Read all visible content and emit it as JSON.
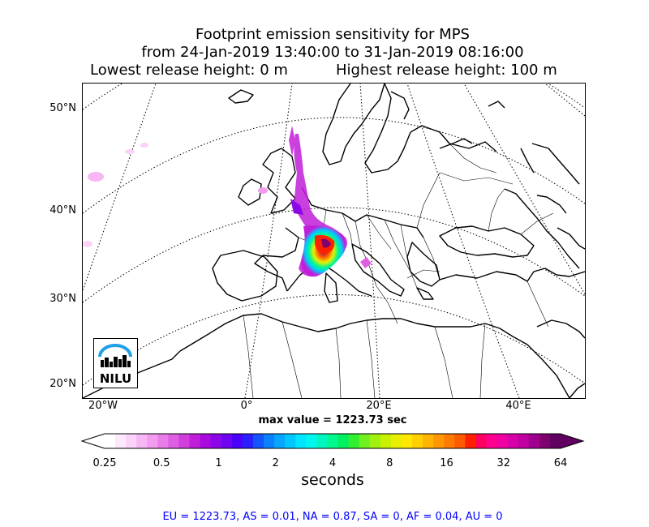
{
  "title": {
    "line1": "Footprint emission sensitivity for MPS",
    "line2": "from 24-Jan-2019 13:40:00 to 31-Jan-2019 08:16:00",
    "line3_left": "Lowest release height: 0 m",
    "line3_right": "Highest release height: 100 m"
  },
  "map": {
    "lat_labels": [
      "50°N",
      "40°N",
      "30°N",
      "20°N"
    ],
    "lon_labels": [
      "20°W",
      "0°",
      "20°E",
      "40°E"
    ],
    "logo_text": "NILU"
  },
  "max_value_text": "max value = 1223.73 sec",
  "colorbar": {
    "ticks": [
      "0.25",
      "0.5",
      "1",
      "2",
      "4",
      "8",
      "16",
      "32",
      "64"
    ],
    "label": "seconds",
    "colors": [
      "#ffffff",
      "#fde8fc",
      "#fbd2f9",
      "#f7b6f4",
      "#f29bef",
      "#e97de8",
      "#de5fe2",
      "#d03fdc",
      "#c01ed8",
      "#a80ae0",
      "#8c06ea",
      "#6e04f2",
      "#4a02fa",
      "#2a20ff",
      "#1454ff",
      "#0a80ff",
      "#06a6ff",
      "#00c8ff",
      "#00e6ff",
      "#00f8f0",
      "#00f8c0",
      "#00f890",
      "#00f060",
      "#30f030",
      "#70f020",
      "#a0f010",
      "#c8f000",
      "#e8f000",
      "#ffe800",
      "#ffd000",
      "#ffb400",
      "#ff9800",
      "#ff7a00",
      "#ff5a00",
      "#ff2000",
      "#ff0060",
      "#ff0090",
      "#f000a0",
      "#d800a8",
      "#c000a0",
      "#a00090",
      "#800070",
      "#600060"
    ]
  },
  "footer": "EU = 1223.73,  AS = 0.01,  NA = 0.87,  SA = 0,  AF = 0.04,  AU = 0"
}
